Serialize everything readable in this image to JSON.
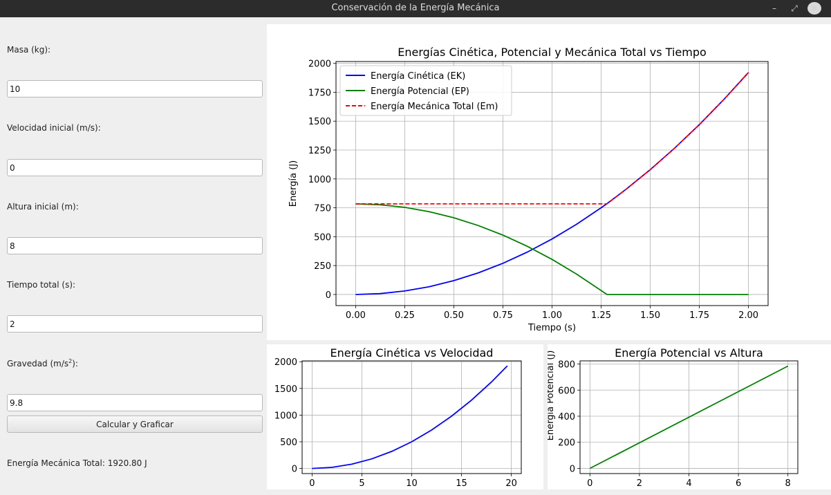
{
  "window": {
    "title": "Conservación de la Energía Mecánica",
    "minimize_icon": "minimize-icon",
    "maximize_icon": "maximize-icon",
    "close_icon": "close-icon"
  },
  "form": {
    "mass_label": "Masa (kg):",
    "mass_value": "10",
    "velocity_label": "Velocidad inicial (m/s):",
    "velocity_value": "0",
    "height_label": "Altura inicial (m):",
    "height_value": "8",
    "time_label": "Tiempo total (s):",
    "time_value": "2",
    "gravity_label_prefix": "Gravedad (m/s",
    "gravity_label_sup": "2",
    "gravity_label_suffix": "):",
    "gravity_value": "9.8",
    "calc_button_label": "Calcular y Graficar",
    "result_text": "Energía Mecánica Total: 1920.80 J"
  },
  "chart_data": [
    {
      "type": "line",
      "title": "Energías Cinética, Potencial y Mecánica Total vs Tiempo",
      "xlabel": "Tiempo (s)",
      "ylabel": "Energía (J)",
      "xlim": [
        -0.1,
        2.1
      ],
      "ylim": [
        -96,
        2016
      ],
      "xticks": [
        0,
        0.25,
        0.5,
        0.75,
        1.0,
        1.25,
        1.5,
        1.75,
        2.0
      ],
      "xtick_labels": [
        "0.00",
        "0.25",
        "0.50",
        "0.75",
        "1.00",
        "1.25",
        "1.50",
        "1.75",
        "2.00"
      ],
      "yticks": [
        0,
        250,
        500,
        750,
        1000,
        1250,
        1500,
        1750,
        2000
      ],
      "ytick_labels": [
        "0",
        "250",
        "500",
        "750",
        "1000",
        "1250",
        "1500",
        "1750",
        "2000"
      ],
      "grid": true,
      "legend": "top-left",
      "series": [
        {
          "name": "Energía Cinética (EK)",
          "color": "#0000ff",
          "style": "solid",
          "x": [
            0,
            0.125,
            0.25,
            0.375,
            0.5,
            0.625,
            0.75,
            0.875,
            1.0,
            1.125,
            1.25,
            1.28,
            1.375,
            1.5,
            1.625,
            1.75,
            1.875,
            2.0
          ],
          "y": [
            0,
            7.5,
            30,
            67.5,
            120,
            187.6,
            270.1,
            367.7,
            480.2,
            607.8,
            750.3,
            786.5,
            907.9,
            1080.5,
            1268.1,
            1470.6,
            1688.2,
            1920.8
          ]
        },
        {
          "name": "Energía Potencial (EP)",
          "color": "#008000",
          "style": "solid",
          "x": [
            0,
            0.125,
            0.25,
            0.375,
            0.5,
            0.625,
            0.75,
            0.875,
            1.0,
            1.125,
            1.25,
            1.28,
            1.3,
            1.5,
            1.75,
            2.0
          ],
          "y": [
            784,
            776.5,
            754,
            716.5,
            664,
            596.4,
            513.9,
            416.3,
            303.8,
            176.2,
            33.7,
            0,
            0,
            0,
            0,
            0
          ]
        },
        {
          "name": "Energía Mecánica Total (Em)",
          "color": "#ff0000",
          "style": "dashed",
          "x": [
            0,
            0.25,
            0.5,
            0.75,
            1.0,
            1.25,
            1.28,
            1.375,
            1.5,
            1.625,
            1.75,
            1.875,
            2.0
          ],
          "y": [
            784,
            784,
            784,
            784,
            784,
            784,
            784,
            907.9,
            1080.5,
            1268.1,
            1470.6,
            1688.2,
            1920.8
          ]
        }
      ]
    },
    {
      "type": "line",
      "title": "Energía Cinética vs Velocidad",
      "xlim": [
        -1,
        21
      ],
      "ylim": [
        -96,
        2016
      ],
      "xticks": [
        0,
        5,
        10,
        15,
        20
      ],
      "xtick_labels": [
        "0",
        "5",
        "10",
        "15",
        "20"
      ],
      "yticks": [
        0,
        500,
        1000,
        1500,
        2000
      ],
      "ytick_labels": [
        "0",
        "500",
        "1000",
        "1500",
        "2000"
      ],
      "grid": true,
      "series": [
        {
          "color": "#0000ff",
          "style": "solid",
          "x": [
            0,
            2,
            4,
            6,
            8,
            10,
            12,
            14,
            16,
            18,
            19.6
          ],
          "y": [
            0,
            20,
            80,
            180,
            320,
            500,
            720,
            980,
            1280,
            1620,
            1920.8
          ]
        }
      ]
    },
    {
      "type": "line",
      "title": "Energía Potencial vs Altura",
      "ylabel": "Energía Potencial (J)",
      "xlim": [
        -0.4,
        8.4
      ],
      "ylim": [
        -40,
        824
      ],
      "xticks": [
        0,
        2,
        4,
        6,
        8
      ],
      "xtick_labels": [
        "0",
        "2",
        "4",
        "6",
        "8"
      ],
      "yticks": [
        0,
        200,
        400,
        600,
        800
      ],
      "ytick_labels": [
        "0",
        "200",
        "400",
        "600",
        "800"
      ],
      "grid": true,
      "series": [
        {
          "color": "#008000",
          "style": "solid",
          "x": [
            0,
            8
          ],
          "y": [
            0,
            784
          ]
        }
      ]
    }
  ]
}
